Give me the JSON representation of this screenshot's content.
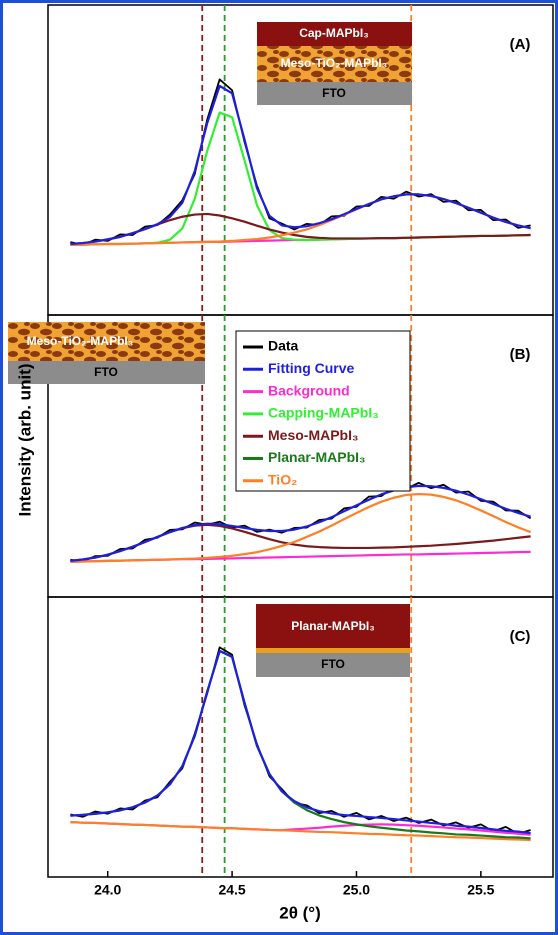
{
  "chart_data": [
    {
      "type": "line",
      "panel_label": "(A)",
      "inset": [
        "Cap-MAPbI₃",
        "Meso-TiO₂-MAPbI₃",
        "FTO"
      ],
      "xlim": [
        23.76,
        25.79
      ],
      "ylim": [
        0,
        100
      ],
      "x": [
        23.85,
        23.9,
        23.95,
        24.0,
        24.05,
        24.1,
        24.15,
        24.2,
        24.25,
        24.3,
        24.35,
        24.4,
        24.45,
        24.5,
        24.55,
        24.6,
        24.65,
        24.7,
        24.75,
        24.8,
        24.85,
        24.9,
        24.95,
        25.0,
        25.05,
        25.1,
        25.15,
        25.2,
        25.25,
        25.3,
        25.35,
        25.4,
        25.45,
        25.5,
        25.55,
        25.6,
        25.65,
        25.7
      ],
      "reference_lines": [
        {
          "x": 24.38,
          "color": "#8b1a1a"
        },
        {
          "x": 24.47,
          "color": "#2a9a2a"
        },
        {
          "x": 25.22,
          "color": "#ff7f27"
        }
      ],
      "series": [
        {
          "color": "#000000",
          "values": [
            23.5,
            22.6,
            24.3,
            23.9,
            26.0,
            25.8,
            28.5,
            29.0,
            32.4,
            37.0,
            45.5,
            63.0,
            76.0,
            72.5,
            55.8,
            41.7,
            31.2,
            29.5,
            27.6,
            29.4,
            29.0,
            31.8,
            32.0,
            35.0,
            35.2,
            38.1,
            37.5,
            39.8,
            38.2,
            39.0,
            36.5,
            36.9,
            33.8,
            33.9,
            30.6,
            30.8,
            28.1,
            28.9
          ]
        },
        {
          "color": "#ff2bd0",
          "values": [
            22.6,
            22.7,
            22.8,
            22.9,
            22.9,
            23.0,
            23.1,
            23.2,
            23.3,
            23.4,
            23.5,
            23.6,
            23.6,
            23.7,
            23.8,
            23.9,
            24.0,
            24.1,
            24.2,
            24.2,
            24.3,
            24.4,
            24.5,
            24.6,
            24.7,
            24.8,
            24.8,
            24.9,
            25.0,
            25.1,
            25.2,
            25.3,
            25.4,
            25.5,
            25.5,
            25.6,
            25.7,
            25.8
          ]
        },
        {
          "color": "#33ee33",
          "values": [
            22.6,
            22.7,
            22.8,
            22.9,
            22.9,
            23.0,
            23.1,
            23.3,
            24.3,
            27.9,
            37.5,
            52.9,
            65.3,
            63.8,
            49.9,
            35.4,
            27.4,
            24.8,
            24.3,
            24.2,
            24.3,
            24.4,
            24.5,
            24.6,
            24.7,
            24.8,
            24.8,
            24.9,
            25.0,
            25.1,
            25.2,
            25.3,
            25.4,
            25.5,
            25.5,
            25.6,
            25.7,
            25.8
          ]
        },
        {
          "color": "#7a1a1a",
          "values": [
            22.9,
            23.2,
            23.7,
            24.4,
            25.2,
            26.4,
            27.7,
            29.2,
            30.6,
            31.7,
            32.4,
            32.6,
            32.1,
            31.2,
            30.1,
            28.8,
            27.6,
            26.6,
            25.8,
            25.2,
            24.9,
            24.7,
            24.7,
            24.7,
            24.7,
            24.8,
            24.8,
            24.9,
            25.0,
            25.1,
            25.2,
            25.3,
            25.4,
            25.5,
            25.5,
            25.6,
            25.7,
            25.8
          ]
        },
        {
          "color": "#ff7f27",
          "values": [
            22.6,
            22.7,
            22.8,
            22.9,
            22.9,
            23.0,
            23.1,
            23.2,
            23.3,
            23.4,
            23.5,
            23.6,
            23.7,
            23.9,
            24.2,
            24.5,
            25.0,
            25.7,
            26.6,
            27.6,
            29.0,
            30.6,
            32.3,
            34.1,
            35.8,
            37.3,
            38.3,
            38.9,
            38.9,
            38.4,
            37.4,
            36.1,
            34.6,
            33.0,
            31.4,
            30.0,
            28.9,
            28.0
          ]
        },
        {
          "color": "#1f1fe0",
          "values": [
            22.9,
            23.2,
            23.7,
            24.4,
            25.2,
            26.4,
            27.7,
            29.3,
            31.6,
            36.2,
            46.4,
            61.9,
            73.9,
            71.5,
            56.6,
            40.9,
            32.0,
            28.9,
            28.3,
            28.6,
            29.6,
            30.9,
            32.5,
            34.2,
            35.8,
            37.3,
            38.3,
            38.9,
            38.9,
            38.4,
            37.4,
            36.1,
            34.6,
            33.0,
            31.4,
            30.0,
            28.9,
            28.0
          ]
        }
      ]
    },
    {
      "type": "line",
      "panel_label": "(B)",
      "inset": [
        "Meso-TiO₂-MAPbI₃",
        "FTO"
      ],
      "ylabel": "Intensity (arb. unit)",
      "legend": [
        {
          "name": "Data",
          "color": "#000000"
        },
        {
          "name": "Fitting Curve",
          "color": "#1f1fe0"
        },
        {
          "name": "Background",
          "color": "#ff2bd0"
        },
        {
          "name": "Capping-MAPbI₃",
          "color": "#33ee33"
        },
        {
          "name": "Meso-MAPbI₃",
          "color": "#7a1a1a"
        },
        {
          "name": "Planar-MAPbI₃",
          "color": "#1a7a1a"
        },
        {
          "name": "TiO₂",
          "color": "#ff7f27"
        }
      ],
      "xlim": [
        23.76,
        25.79
      ],
      "ylim": [
        0,
        100
      ],
      "x": [
        23.85,
        23.9,
        23.95,
        24.0,
        24.05,
        24.1,
        24.15,
        24.2,
        24.25,
        24.3,
        24.35,
        24.4,
        24.45,
        24.5,
        24.55,
        24.6,
        24.65,
        24.7,
        24.75,
        24.8,
        24.85,
        24.9,
        24.95,
        25.0,
        25.05,
        25.1,
        25.15,
        25.2,
        25.25,
        25.3,
        25.35,
        25.4,
        25.45,
        25.5,
        25.55,
        25.6,
        25.65,
        25.7
      ],
      "reference_lines": [
        {
          "x": 24.38,
          "color": "#8b1a1a"
        },
        {
          "x": 24.47,
          "color": "#2a9a2a"
        },
        {
          "x": 25.22,
          "color": "#ff7f27"
        }
      ],
      "series": [
        {
          "color": "#000000",
          "values": [
            13.2,
            12.6,
            14.5,
            14.6,
            17.0,
            17.2,
            20.3,
            21.0,
            23.8,
            24.0,
            26.4,
            25.6,
            26.7,
            24.6,
            25.3,
            23.1,
            23.9,
            22.8,
            24.5,
            24.6,
            27.3,
            27.8,
            31.4,
            32.0,
            35.6,
            35.8,
            38.9,
            38.3,
            40.5,
            38.6,
            39.8,
            37.0,
            37.4,
            34.1,
            33.8,
            30.7,
            30.6,
            27.9
          ]
        },
        {
          "color": "#ff2bd0",
          "values": [
            12.5,
            12.6,
            12.7,
            12.8,
            12.9,
            13.0,
            13.1,
            13.2,
            13.3,
            13.4,
            13.4,
            13.5,
            13.6,
            13.7,
            13.8,
            13.9,
            14.0,
            14.1,
            14.2,
            14.3,
            14.4,
            14.5,
            14.6,
            14.7,
            14.8,
            14.9,
            15.0,
            15.1,
            15.1,
            15.2,
            15.3,
            15.4,
            15.5,
            15.6,
            15.7,
            15.8,
            15.9,
            16.0
          ]
        },
        {
          "color": "#7a1a1a",
          "values": [
            12.8,
            13.3,
            14.0,
            15.0,
            16.3,
            17.8,
            19.5,
            21.3,
            23.0,
            24.4,
            25.3,
            25.6,
            25.2,
            24.3,
            23.1,
            21.8,
            20.5,
            19.4,
            18.6,
            18.0,
            17.7,
            17.5,
            17.4,
            17.4,
            17.4,
            17.5,
            17.6,
            17.8,
            18.0,
            18.2,
            18.5,
            18.8,
            19.2,
            19.6,
            20.0,
            20.5,
            21.0,
            21.5
          ]
        },
        {
          "color": "#ff7f27",
          "values": [
            12.5,
            12.6,
            12.7,
            12.8,
            12.9,
            13.0,
            13.1,
            13.2,
            13.3,
            13.5,
            13.6,
            13.9,
            14.2,
            14.6,
            15.2,
            15.9,
            16.9,
            18.1,
            19.5,
            21.3,
            23.2,
            25.3,
            27.6,
            29.8,
            31.9,
            33.8,
            35.2,
            36.2,
            36.5,
            36.3,
            35.5,
            34.3,
            32.6,
            30.7,
            28.7,
            26.6,
            24.7,
            23.0
          ]
        },
        {
          "color": "#1f1fe0",
          "values": [
            12.8,
            13.3,
            14.0,
            15.0,
            16.3,
            17.8,
            19.5,
            21.3,
            23.0,
            24.5,
            25.5,
            26.0,
            25.8,
            25.2,
            24.5,
            23.8,
            23.4,
            23.4,
            23.9,
            25.0,
            26.5,
            28.3,
            30.4,
            32.5,
            34.5,
            36.4,
            37.8,
            38.9,
            39.4,
            39.3,
            38.7,
            37.7,
            36.3,
            34.7,
            33.0,
            31.3,
            29.8,
            28.5
          ]
        }
      ]
    },
    {
      "type": "line",
      "panel_label": "(C)",
      "inset": [
        "Planar-MAPbI₃",
        "FTO"
      ],
      "xlabel": "2θ (°)",
      "xlim": [
        23.76,
        25.79
      ],
      "ylim": [
        0,
        100
      ],
      "xticks": [
        {
          "value": 24,
          "label": "24.0"
        },
        24.5,
        {
          "value": 25,
          "label": "25.0"
        },
        25.5
      ],
      "x": [
        23.85,
        23.9,
        23.95,
        24.0,
        24.05,
        24.1,
        24.15,
        24.2,
        24.25,
        24.3,
        24.35,
        24.4,
        24.45,
        24.5,
        24.55,
        24.6,
        24.65,
        24.7,
        24.75,
        24.8,
        24.85,
        24.9,
        24.95,
        25.0,
        25.05,
        25.1,
        25.15,
        25.2,
        25.25,
        25.3,
        25.35,
        25.4,
        25.45,
        25.5,
        25.55,
        25.6,
        25.65,
        25.7
      ],
      "reference_lines": [
        {
          "x": 24.38,
          "color": "#8b1a1a"
        },
        {
          "x": 24.47,
          "color": "#2a9a2a"
        },
        {
          "x": 25.22,
          "color": "#ff7f27"
        }
      ],
      "series": [
        {
          "color": "#000000",
          "values": [
            22.3,
            21.5,
            23.4,
            22.6,
            24.5,
            24.1,
            27.3,
            28.5,
            34.0,
            38.8,
            51.2,
            65.5,
            82.0,
            79.4,
            61.3,
            47.5,
            36.0,
            31.4,
            26.5,
            25.6,
            22.8,
            23.6,
            21.5,
            22.9,
            20.6,
            21.8,
            20.0,
            21.2,
            19.3,
            20.5,
            18.4,
            19.5,
            17.6,
            18.8,
            16.3,
            17.9,
            15.4,
            16.8
          ]
        },
        {
          "color": "#ff2bd0",
          "values": [
            19.6,
            19.4,
            19.3,
            19.1,
            18.9,
            18.7,
            18.6,
            18.4,
            18.2,
            18.0,
            17.9,
            17.7,
            17.5,
            17.4,
            17.2,
            17.0,
            16.8,
            16.7,
            17.0,
            17.3,
            17.6,
            18.0,
            18.3,
            18.6,
            18.7,
            18.8,
            18.7,
            18.5,
            18.3,
            18.0,
            17.7,
            17.3,
            17.0,
            16.6,
            16.2,
            15.8,
            15.5,
            15.1
          ]
        },
        {
          "color": "#ff7f27",
          "values": [
            19.6,
            19.4,
            19.3,
            19.1,
            18.9,
            18.7,
            18.6,
            18.4,
            18.2,
            18.0,
            17.9,
            17.7,
            17.5,
            17.4,
            17.2,
            17.0,
            16.8,
            16.7,
            16.5,
            16.3,
            16.1,
            16.0,
            15.8,
            15.6,
            15.4,
            15.3,
            15.1,
            14.9,
            14.8,
            14.6,
            14.4,
            14.2,
            14.1,
            13.9,
            13.7,
            13.5,
            13.4,
            13.2
          ]
        },
        {
          "color": "#1a7a1a",
          "values": [
            21.9,
            22.2,
            22.6,
            23.1,
            23.8,
            24.9,
            26.6,
            29.1,
            33.1,
            39.6,
            50.4,
            66.2,
            80.7,
            78.6,
            62.2,
            46.9,
            36.8,
            30.6,
            26.6,
            23.9,
            22.0,
            20.7,
            19.6,
            18.8,
            18.1,
            17.6,
            17.1,
            16.6,
            16.3,
            15.9,
            15.6,
            15.2,
            15.1,
            14.8,
            14.5,
            14.2,
            14.1,
            13.8
          ]
        },
        {
          "color": "#1f1fe0",
          "values": [
            21.9,
            22.2,
            22.6,
            23.1,
            23.8,
            24.9,
            26.6,
            29.1,
            33.1,
            39.6,
            50.4,
            66.2,
            80.7,
            78.6,
            62.2,
            46.9,
            36.8,
            30.6,
            27.1,
            24.9,
            23.5,
            22.7,
            22.1,
            21.8,
            21.4,
            21.1,
            20.7,
            20.2,
            19.8,
            19.3,
            18.9,
            18.3,
            18.0,
            17.5,
            17.0,
            16.5,
            16.2,
            15.7
          ]
        }
      ]
    }
  ]
}
